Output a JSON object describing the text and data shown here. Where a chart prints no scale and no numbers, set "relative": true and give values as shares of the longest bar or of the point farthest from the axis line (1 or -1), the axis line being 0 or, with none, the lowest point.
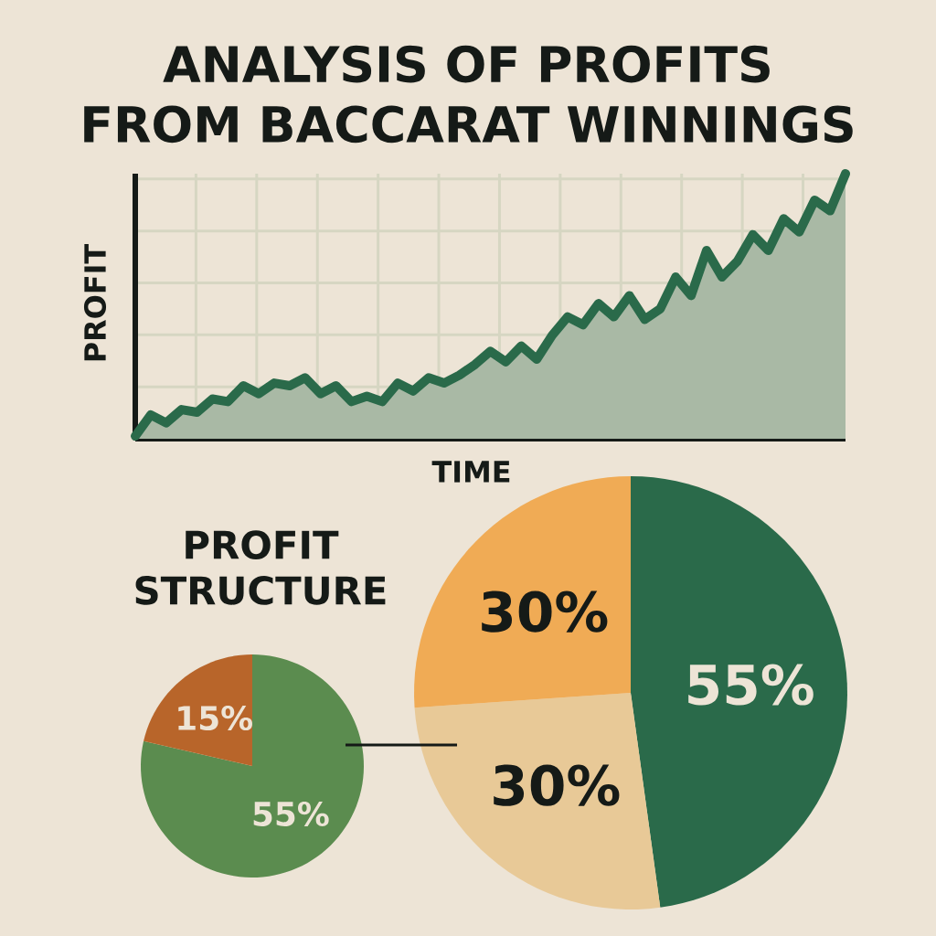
{
  "chart_data": [
    {
      "type": "area",
      "title": "ANALYSIS OF PROFITS FROM BACCARAT WINNINGS",
      "xlabel": "TIME",
      "ylabel": "PROFIT",
      "relative": true,
      "grid": true,
      "categories": [
        null,
        null,
        null,
        null,
        null,
        null,
        null,
        null,
        null,
        null,
        null,
        null,
        null,
        null,
        null,
        null,
        null,
        null,
        null,
        null,
        null,
        null,
        null,
        null,
        null,
        null,
        null,
        null,
        null,
        null,
        null,
        null,
        null,
        null,
        null,
        null,
        null,
        null,
        null,
        null,
        null,
        null,
        null,
        null,
        null,
        null,
        null
      ],
      "series": [
        {
          "color": "#2a6a4a",
          "values": [
            0.01,
            0.09,
            0.06,
            0.11,
            0.1,
            0.15,
            0.14,
            0.2,
            0.17,
            0.21,
            0.2,
            0.23,
            0.17,
            0.2,
            0.14,
            0.16,
            0.14,
            0.21,
            0.18,
            0.23,
            0.21,
            0.24,
            0.28,
            0.33,
            0.29,
            0.35,
            0.3,
            0.39,
            0.46,
            0.43,
            0.51,
            0.46,
            0.54,
            0.45,
            0.49,
            0.61,
            0.54,
            0.71,
            0.61,
            0.67,
            0.77,
            0.71,
            0.83,
            0.78,
            0.9,
            0.86,
            1
          ]
        }
      ]
    },
    {
      "type": "pie",
      "title": "PROFIT STRUCTURE",
      "categories": [
        null,
        null
      ],
      "values": [
        55,
        15
      ],
      "colors": [
        "#5b8c4f",
        "#b8652a"
      ],
      "value_labels": [
        "55%",
        "15%"
      ]
    },
    {
      "type": "pie",
      "categories": [
        null,
        null,
        null
      ],
      "values": [
        55,
        30,
        30
      ],
      "colors": [
        "#2a6a4a",
        "#e8c997",
        "#f0ab55"
      ],
      "value_labels": [
        "55%",
        "30%",
        "30%"
      ]
    }
  ]
}
